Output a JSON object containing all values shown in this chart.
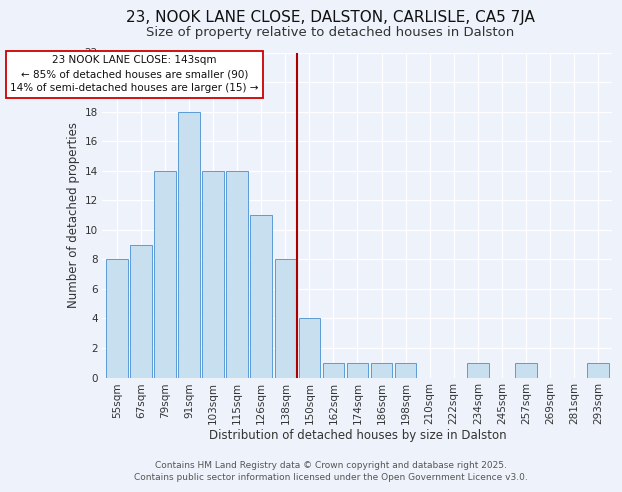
{
  "title": "23, NOOK LANE CLOSE, DALSTON, CARLISLE, CA5 7JA",
  "subtitle": "Size of property relative to detached houses in Dalston",
  "xlabel": "Distribution of detached houses by size in Dalston",
  "ylabel": "Number of detached properties",
  "bar_labels": [
    "55sqm",
    "67sqm",
    "79sqm",
    "91sqm",
    "103sqm",
    "115sqm",
    "126sqm",
    "138sqm",
    "150sqm",
    "162sqm",
    "174sqm",
    "186sqm",
    "198sqm",
    "210sqm",
    "222sqm",
    "234sqm",
    "245sqm",
    "257sqm",
    "269sqm",
    "281sqm",
    "293sqm"
  ],
  "bar_values": [
    8,
    9,
    14,
    18,
    14,
    14,
    11,
    8,
    4,
    1,
    1,
    1,
    1,
    0,
    0,
    1,
    0,
    1,
    0,
    0,
    1
  ],
  "bar_color": "#c8dff0",
  "bar_edge_color": "#5b9bd5",
  "vline_x": 7.5,
  "vline_color": "#aa0000",
  "annotation_title": "23 NOOK LANE CLOSE: 143sqm",
  "annotation_line1": "← 85% of detached houses are smaller (90)",
  "annotation_line2": "14% of semi-detached houses are larger (15) →",
  "annotation_box_color": "#ffffff",
  "annotation_box_edge": "#cc0000",
  "ylim": [
    0,
    22
  ],
  "yticks": [
    0,
    2,
    4,
    6,
    8,
    10,
    12,
    14,
    16,
    18,
    20,
    22
  ],
  "footer1": "Contains HM Land Registry data © Crown copyright and database right 2025.",
  "footer2": "Contains public sector information licensed under the Open Government Licence v3.0.",
  "bg_color": "#eef2fb",
  "grid_color": "#ffffff",
  "title_fontsize": 11,
  "subtitle_fontsize": 9.5,
  "label_fontsize": 8.5,
  "tick_fontsize": 7.5,
  "footer_fontsize": 6.5,
  "annotation_fontsize": 7.5
}
